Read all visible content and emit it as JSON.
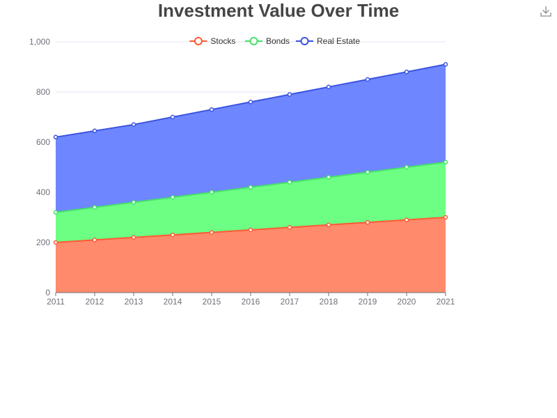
{
  "chart_data": {
    "type": "area",
    "stacked": true,
    "title": "Investment Value Over Time",
    "xlabel": "",
    "ylabel": "",
    "x": [
      "2011",
      "2012",
      "2013",
      "2014",
      "2015",
      "2016",
      "2017",
      "2018",
      "2019",
      "2020",
      "2021"
    ],
    "ylim": [
      0,
      1000
    ],
    "yticks": [
      0,
      200,
      400,
      600,
      800,
      1000
    ],
    "ytick_labels": [
      "0",
      "200",
      "400",
      "600",
      "800",
      "1,000"
    ],
    "grid": true,
    "legend_position": "top-center",
    "series": [
      {
        "name": "Stocks",
        "color": "#ff5a33",
        "fill": "#ff8a6c",
        "values": [
          200,
          210,
          220,
          230,
          240,
          250,
          260,
          270,
          280,
          290,
          300
        ]
      },
      {
        "name": "Bonds",
        "color": "#45e06a",
        "fill": "#6cff84",
        "values": [
          120,
          130,
          140,
          150,
          160,
          170,
          180,
          190,
          200,
          210,
          220
        ]
      },
      {
        "name": "Real Estate",
        "color": "#3a53e0",
        "fill": "#6e86ff",
        "values": [
          300,
          305,
          310,
          320,
          330,
          340,
          350,
          360,
          370,
          380,
          390
        ]
      }
    ]
  },
  "toolbox": {
    "download_icon": "download-icon"
  }
}
